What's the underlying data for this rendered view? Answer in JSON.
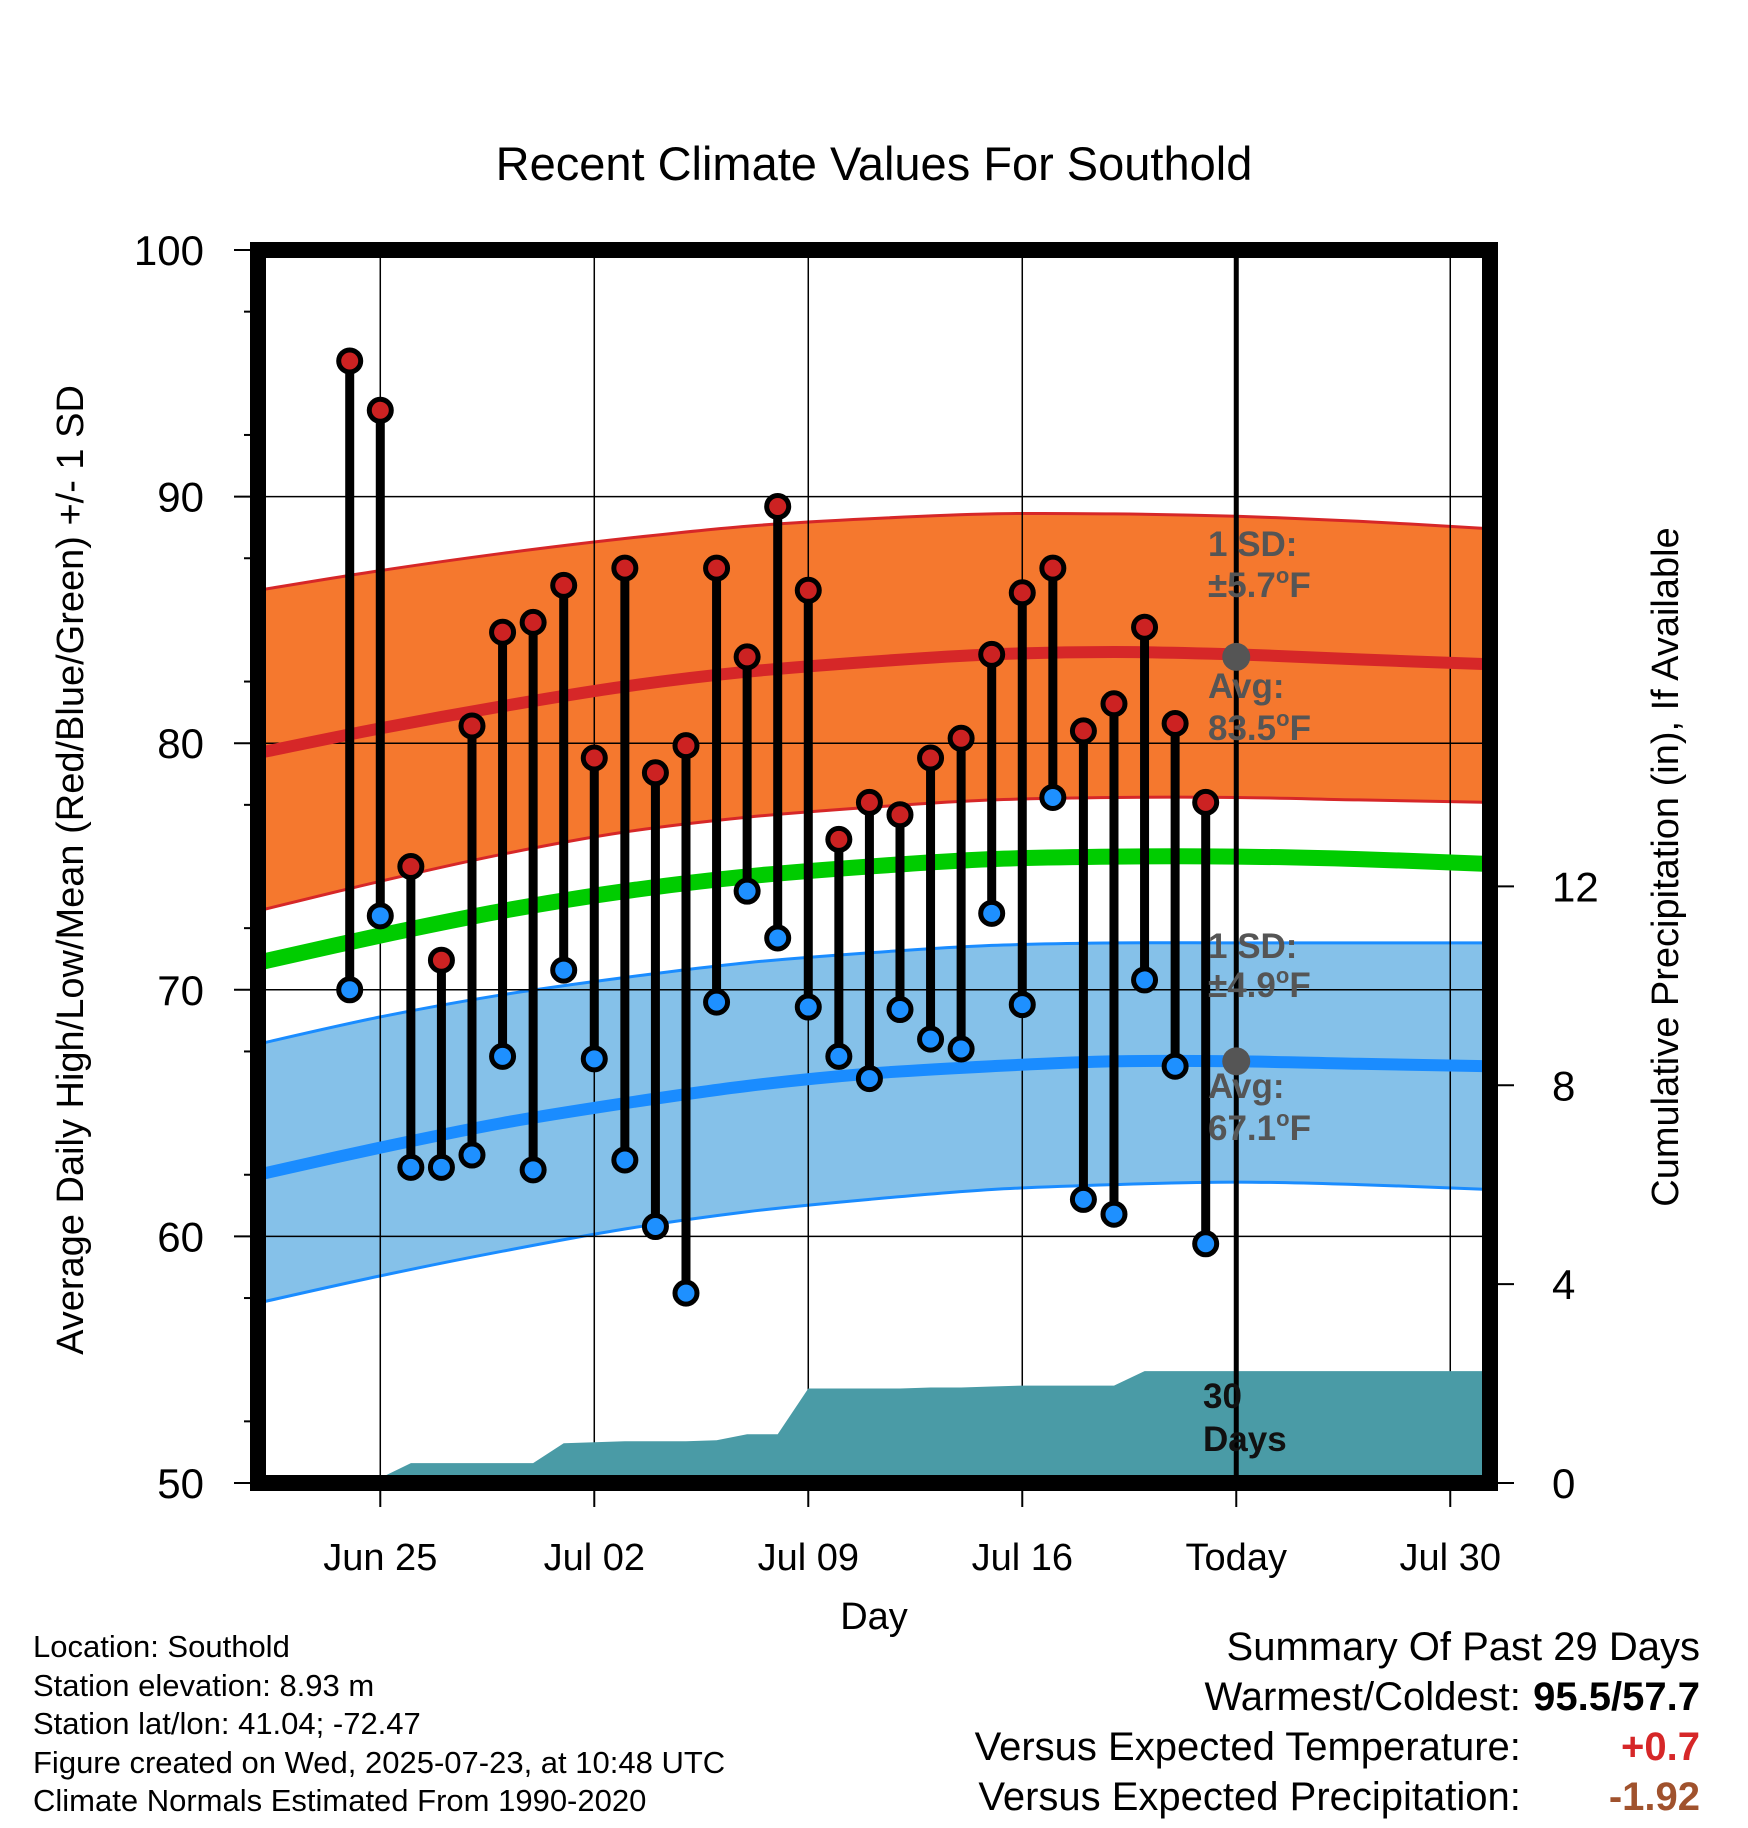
{
  "chart_data": {
    "type": "line",
    "title": "Recent Climate Values For Southold",
    "xlabel": "Day",
    "ylabel_left": "Average Daily High/Low/Mean (Red/Blue/Green) +/- 1 SD",
    "ylabel_right": "Cumulative Precipitation (in), If Available",
    "ylim_left": [
      50,
      100
    ],
    "yticks_left": [
      "50",
      "60",
      "70",
      "80",
      "90",
      "100"
    ],
    "ylim_right": [
      0,
      24.8
    ],
    "yticks_right": [
      "0",
      "4",
      "8",
      "12"
    ],
    "x_start_date": "Jun 21",
    "x_end_date": "Aug 1",
    "xticks": [
      {
        "day": 4,
        "label": "Jun 25"
      },
      {
        "day": 11,
        "label": "Jul 02"
      },
      {
        "day": 18,
        "label": "Jul 09"
      },
      {
        "day": 25,
        "label": "Jul 16"
      },
      {
        "day": 32,
        "label": "Today"
      },
      {
        "day": 39,
        "label": "Jul 30"
      }
    ],
    "grid": true,
    "normals": {
      "x_days": [
        0,
        4,
        8,
        12,
        16,
        20,
        24,
        28,
        32,
        36,
        40.3
      ],
      "high_avg": [
        79.6,
        80.6,
        81.5,
        82.3,
        82.9,
        83.3,
        83.6,
        83.7,
        83.6,
        83.4,
        83.2
      ],
      "high_upper": [
        86.2,
        87.0,
        87.7,
        88.3,
        88.8,
        89.1,
        89.3,
        89.3,
        89.2,
        89.0,
        88.7
      ],
      "high_lower": [
        73.2,
        74.4,
        75.5,
        76.4,
        77.0,
        77.4,
        77.7,
        77.8,
        77.8,
        77.7,
        77.6
      ],
      "mean_avg": [
        71.1,
        72.2,
        73.2,
        74.0,
        74.6,
        75.0,
        75.3,
        75.4,
        75.4,
        75.3,
        75.1
      ],
      "low_avg": [
        62.5,
        63.6,
        64.6,
        65.4,
        66.1,
        66.6,
        66.9,
        67.1,
        67.1,
        67.0,
        66.9
      ],
      "low_upper": [
        67.8,
        68.9,
        69.8,
        70.5,
        71.1,
        71.5,
        71.8,
        71.9,
        71.9,
        71.9,
        71.9
      ],
      "low_lower": [
        57.3,
        58.4,
        59.4,
        60.3,
        61.0,
        61.5,
        61.9,
        62.1,
        62.2,
        62.1,
        61.9
      ]
    },
    "observed": {
      "days": [
        3,
        4,
        5,
        6,
        7,
        8,
        9,
        10,
        11,
        12,
        13,
        14,
        15,
        16,
        17,
        18,
        19,
        20,
        21,
        22,
        23,
        24,
        25,
        26,
        27,
        28,
        29,
        30,
        31
      ],
      "highs": [
        95.5,
        93.5,
        75.0,
        71.2,
        80.7,
        84.5,
        84.9,
        86.4,
        79.4,
        87.1,
        78.8,
        79.9,
        87.1,
        83.5,
        89.6,
        86.2,
        76.1,
        77.6,
        77.1,
        79.4,
        80.2,
        83.6,
        86.1,
        87.1,
        80.5,
        81.6,
        84.7,
        80.8,
        77.6
      ],
      "lows": [
        70.0,
        73.0,
        62.8,
        62.8,
        63.3,
        67.3,
        62.7,
        70.8,
        67.2,
        63.1,
        60.4,
        57.7,
        69.5,
        74.0,
        72.1,
        69.3,
        67.3,
        66.4,
        69.2,
        68.0,
        67.6,
        73.1,
        69.4,
        77.8,
        61.5,
        60.9,
        70.4,
        66.9,
        59.7
      ]
    },
    "precip": {
      "days": [
        3,
        4,
        5,
        6,
        7,
        8,
        9,
        10,
        11,
        12,
        13,
        14,
        15,
        16,
        17,
        18,
        19,
        20,
        21,
        22,
        23,
        24,
        25,
        26,
        27,
        28,
        29,
        30,
        31,
        32,
        40.3
      ],
      "values": [
        0.0,
        0.1,
        0.4,
        0.4,
        0.4,
        0.4,
        0.4,
        0.8,
        0.82,
        0.84,
        0.84,
        0.84,
        0.86,
        0.98,
        0.98,
        1.9,
        1.9,
        1.9,
        1.9,
        1.92,
        1.92,
        1.94,
        1.96,
        1.96,
        1.96,
        1.96,
        2.25,
        2.25,
        2.25,
        2.25,
        2.25
      ]
    },
    "annotations": {
      "high_sd_label": "1 SD:",
      "high_sd_value": "±5.7",
      "high_avg_label": "Avg:",
      "high_avg_value": "83.5",
      "low_sd_label": "1 SD:",
      "low_sd_value": "±4.9",
      "low_avg_label": "Avg:",
      "low_avg_value": "67.1",
      "degree_unit": "o",
      "unit_letter": "F",
      "precip_period_line1": "30",
      "precip_period_line2": "Days"
    },
    "colors": {
      "high_band": "#f5782e",
      "high_line": "#d62728",
      "mean_line": "#00cc00",
      "low_band": "#85c1e9",
      "low_line": "#1a8cff",
      "precip_fill": "#4a9ba6",
      "high_marker": "#cc2222",
      "low_marker": "#1e90ff",
      "annotation_text": "#555555",
      "summary_warm": "#d62728",
      "summary_precip": "#a0522d"
    }
  },
  "footer": {
    "location": "Location: Southold",
    "elevation": "Station elevation: 8.93 m",
    "latlon": "Station lat/lon: 41.04; -72.47",
    "created": "Figure created on Wed, 2025-07-23, at 10:48 UTC",
    "normals": "Climate Normals Estimated From 1990-2020"
  },
  "summary": {
    "heading": "Summary Of Past 29 Days",
    "warm_cold_label": "Warmest/Coldest:",
    "warm_cold_value": "95.5/57.7",
    "temp_label": "Versus Expected Temperature:",
    "temp_value": "+0.7",
    "precip_label": "Versus Expected Precipitation:",
    "precip_value": "-1.92"
  }
}
